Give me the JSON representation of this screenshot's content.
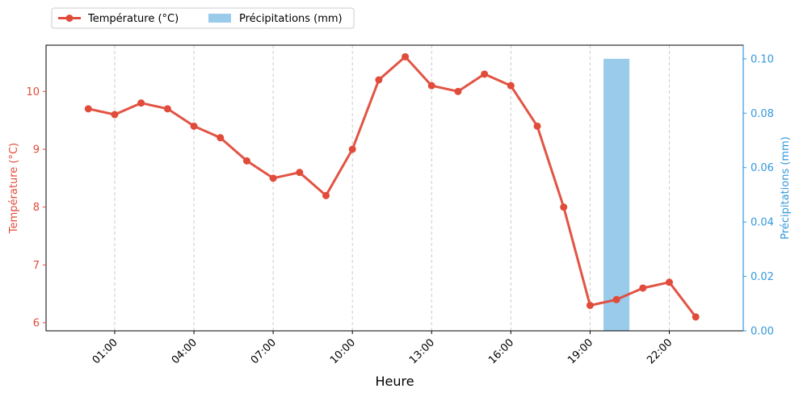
{
  "chart_data": {
    "type": "line+bar",
    "xlabel": "Heure",
    "y_left_label": "Température (°C)",
    "y_right_label": "Précipitations (mm)",
    "x_tick_labels": [
      "01:00",
      "04:00",
      "07:00",
      "10:00",
      "13:00",
      "16:00",
      "19:00",
      "22:00"
    ],
    "x_tick_hours": [
      1,
      4,
      7,
      10,
      13,
      16,
      19,
      22
    ],
    "x_range_hours": [
      -1.6,
      24.8
    ],
    "y_left_range": [
      5.86,
      10.8
    ],
    "y_left_ticks": [
      6,
      7,
      8,
      9,
      10
    ],
    "y_right_range": [
      0,
      0.105
    ],
    "y_right_ticks": [
      "0.00",
      "0.02",
      "0.04",
      "0.06",
      "0.08",
      "0.10"
    ],
    "grid": "vertical-dashed",
    "legend_position": "top-left, above plot",
    "colors": {
      "temperature": "#e04b3a",
      "precipitation": "#9acbeb",
      "right_axis": "#3498db"
    },
    "series": [
      {
        "name": "Température (°C)",
        "kind": "line",
        "axis": "left",
        "hours": [
          0,
          1,
          2,
          3,
          4,
          5,
          6,
          7,
          8,
          9,
          10,
          11,
          12,
          13,
          14,
          15,
          16,
          17,
          18,
          19,
          20,
          21,
          22,
          23
        ],
        "values": [
          9.7,
          9.6,
          9.8,
          9.7,
          9.4,
          9.2,
          8.8,
          8.5,
          8.6,
          8.2,
          9.0,
          10.2,
          10.6,
          10.1,
          10.0,
          10.3,
          10.1,
          9.4,
          8.0,
          6.3,
          6.4,
          6.6,
          6.7,
          6.1
        ]
      },
      {
        "name": "Précipitations (mm)",
        "kind": "bar",
        "axis": "right",
        "hours": [
          0,
          1,
          2,
          3,
          4,
          5,
          6,
          7,
          8,
          9,
          10,
          11,
          12,
          13,
          14,
          15,
          16,
          17,
          18,
          19,
          20,
          21,
          22,
          23
        ],
        "values": [
          0,
          0,
          0,
          0,
          0,
          0,
          0,
          0,
          0,
          0,
          0,
          0,
          0,
          0,
          0,
          0,
          0,
          0,
          0,
          0,
          0.1,
          0,
          0,
          0
        ]
      }
    ]
  }
}
